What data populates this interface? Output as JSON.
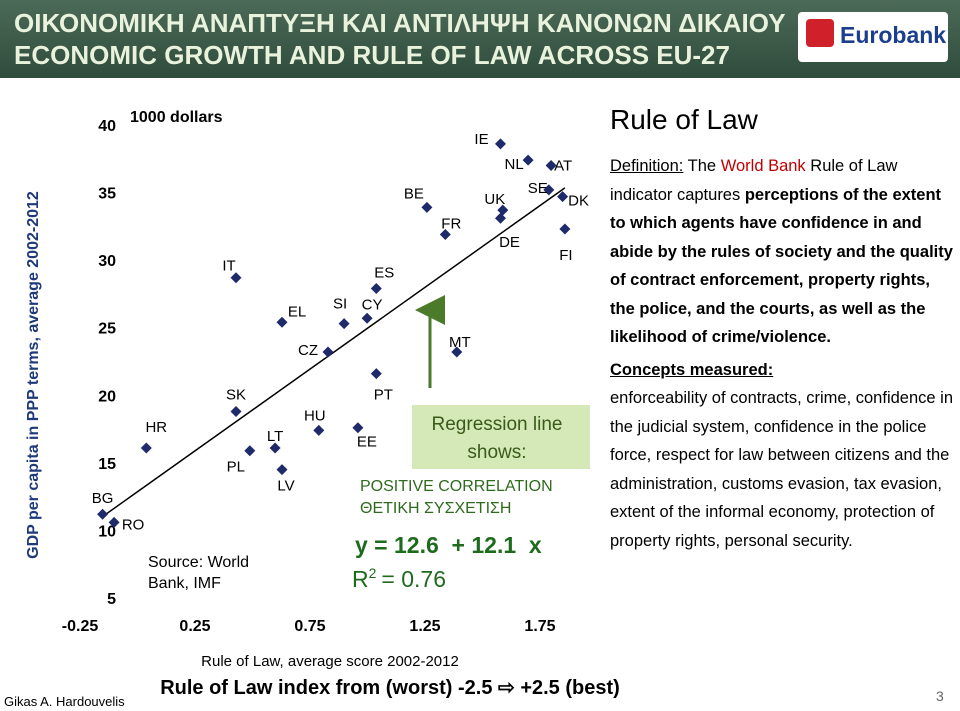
{
  "header": {
    "title_lines": [
      "ΟΙΚΟΝΟΜΙΚΗ ΑΝΑΠΤΥΞΗ ΚΑΙ ΑΝΤΙΛΗΨΗ ΚΑΝΟΝΩΝ ΔΙΚΑΙΟΥ",
      "ECONOMIC GROWTH AND RULE OF LAW ACROSS EU-27"
    ],
    "logo": "Eurobank"
  },
  "chart_data": {
    "type": "scatter",
    "y_label": "GDP per capita in PPP terms, average 2002-2012",
    "y_unit": "1000 dollars",
    "x_label": "Rule of Law, average score 2002-2012",
    "x_note": "Rule of Law index from (worst) -2.5 ⇨ +2.5 (best)",
    "source_lines": [
      "Source: World",
      "Bank, IMF"
    ],
    "xlim": [
      -0.25,
      2
    ],
    "ylim": [
      5,
      40
    ],
    "xticks": [
      -0.25,
      0.25,
      0.75,
      1.25,
      1.75
    ],
    "yticks": [
      5,
      10,
      15,
      20,
      25,
      30,
      35,
      40
    ],
    "grid": false,
    "series": [
      {
        "color": "#1f2a6b",
        "labels": [
          "BG",
          "RO",
          "HR",
          "IT",
          "SK",
          "PL",
          "LT",
          "LV",
          "EL",
          "CZ",
          "SI",
          "CY",
          "ES",
          "HU",
          "EE",
          "PT",
          "BE",
          "FR",
          "MT",
          "IE",
          "NL",
          "AT",
          "UK",
          "SE",
          "DK",
          "DE",
          "FI"
        ],
        "x": [
          -0.13,
          -0.08,
          0.06,
          0.45,
          0.45,
          0.51,
          0.62,
          0.65,
          0.65,
          0.85,
          0.92,
          1.02,
          1.06,
          0.81,
          0.98,
          1.06,
          1.28,
          1.36,
          1.41,
          1.6,
          1.72,
          1.82,
          1.61,
          1.81,
          1.87,
          1.6,
          1.88
        ],
        "values": [
          11.2,
          10.6,
          16.1,
          28.7,
          18.8,
          15.9,
          16.1,
          14.5,
          25.4,
          23.2,
          25.3,
          25.7,
          27.9,
          17.4,
          17.6,
          21.6,
          33.9,
          31.9,
          23.2,
          38.6,
          37.4,
          37.0,
          33.7,
          35.2,
          34.7,
          33.1,
          32.3
        ]
      }
    ],
    "regression": {
      "intercept": 12.6,
      "slope": 12.1,
      "equation": "y = 12.6  + 12.1  x",
      "r2_symbol": "R",
      "r2_exponent": "2",
      "r2_value": "= 0.76"
    },
    "callout": [
      "Regression line",
      "shows:"
    ],
    "correlation": [
      "POSITIVE CORRELATION",
      "ΘΕΤΙΚΗ ΣΥΣΧΕΤΙΣΗ"
    ]
  },
  "sidebar": {
    "heading": "Rule of Law",
    "definition_label": "Definition:",
    "def_1": "The",
    "def_bank": "World Bank",
    "def_2": "Rule of Law indicator captures",
    "def_bold": "perceptions of the extent to which agents have confidence in and abide by the rules of society and the quality of contract enforcement, property rights, the police, and the courts, as well as the likelihood of crime/violence.",
    "concepts_label": "Concepts measured:",
    "concepts_text": "enforceability of contracts, crime, confidence in the judicial system, confidence in the police force, respect for law between citizens and the administration, customs evasion, tax evasion, extent of the informal economy, protection of property rights, personal security."
  },
  "footer": {
    "author": "Gikas A. Hardouvelis",
    "page": "3"
  }
}
